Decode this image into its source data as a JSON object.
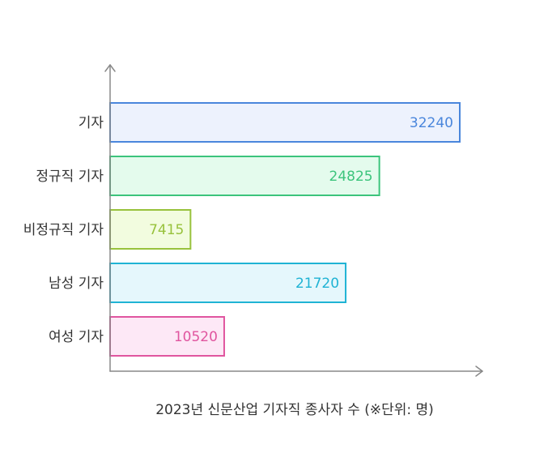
{
  "chart_data": {
    "type": "bar",
    "orientation": "horizontal",
    "categories": [
      "기자",
      "정규직 기자",
      "비정규직 기자",
      "남성 기자",
      "여성 기자"
    ],
    "values": [
      32240,
      24825,
      7415,
      21720,
      10520
    ],
    "xlabel": "2023년 신문산업 기자직 종사자 수 (※단위: 명)",
    "ylabel": "",
    "title": "",
    "xlim": [
      0,
      34000
    ],
    "grid": false,
    "data_labels": true,
    "bar_colors": [
      {
        "fill": "#edf2fd",
        "stroke": "#4a86dc",
        "text": "#4a86dc"
      },
      {
        "fill": "#e4fbed",
        "stroke": "#3cc47c",
        "text": "#3cc47c"
      },
      {
        "fill": "#f2fcdf",
        "stroke": "#98c23c",
        "text": "#98c23c"
      },
      {
        "fill": "#e5f7fc",
        "stroke": "#1fb3d4",
        "text": "#1fb3d4"
      },
      {
        "fill": "#fde8f6",
        "stroke": "#e0559f",
        "text": "#e0559f"
      }
    ],
    "axis_color": "#888888"
  }
}
